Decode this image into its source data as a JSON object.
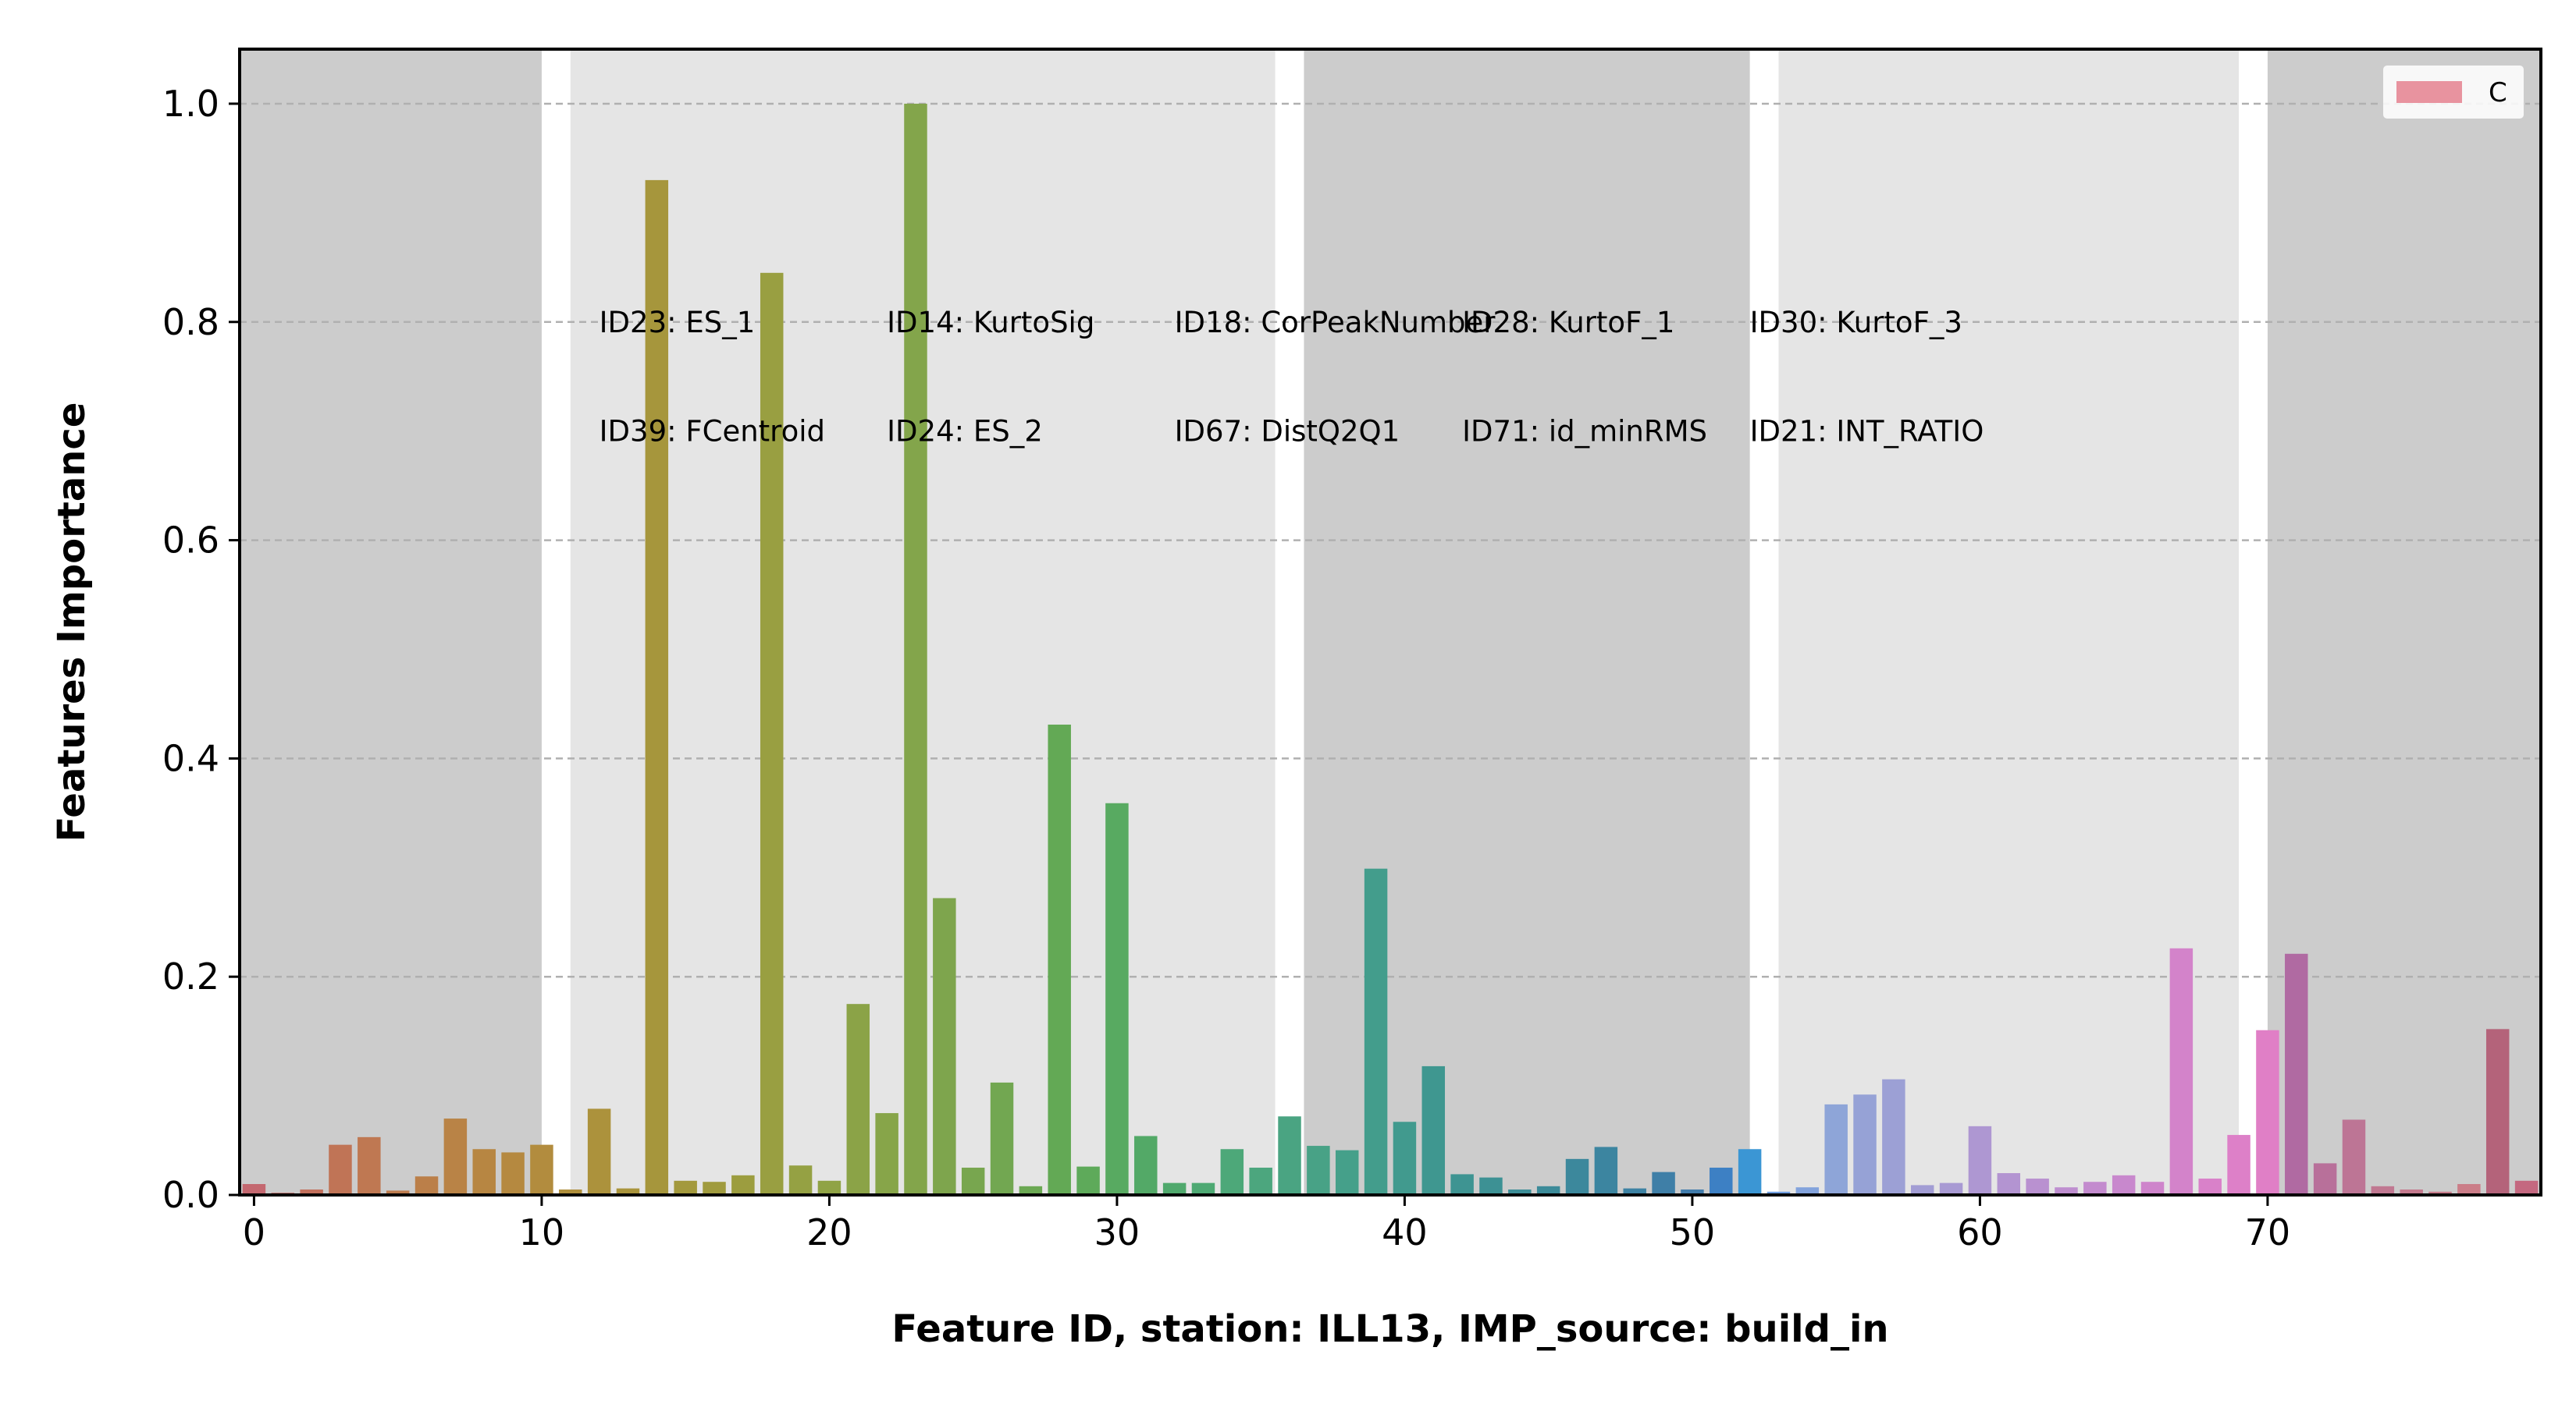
{
  "chart_data": {
    "type": "bar",
    "xlabel": "Feature ID, station: ILL13, IMP_source: build_in",
    "ylabel": "Features Importance",
    "xlim": [
      -0.5,
      79.5
    ],
    "ylim": [
      0,
      1.05
    ],
    "xticks": [
      0,
      10,
      20,
      30,
      40,
      50,
      60,
      70
    ],
    "yticks": [
      0.0,
      0.2,
      0.4,
      0.6,
      0.8,
      1.0
    ],
    "xtick_labels": [
      "0",
      "10",
      "20",
      "30",
      "40",
      "50",
      "60",
      "70"
    ],
    "ytick_labels": [
      "0.0",
      "0.2",
      "0.4",
      "0.6",
      "0.8",
      "1.0"
    ],
    "grid": "y-dashed",
    "legend": {
      "position": "top-right",
      "entries": [
        {
          "label": "C",
          "color": "#e8939f"
        }
      ]
    },
    "background_bands": [
      {
        "start": -0.5,
        "end": 10.0,
        "color": "#cccccc"
      },
      {
        "start": 11.0,
        "end": 35.5,
        "color": "#e5e5e5"
      },
      {
        "start": 36.5,
        "end": 52.0,
        "color": "#cccccc"
      },
      {
        "start": 53.0,
        "end": 69.0,
        "color": "#e5e5e5"
      },
      {
        "start": 70.0,
        "end": 79.5,
        "color": "#cccccc"
      }
    ],
    "annotations": [
      {
        "text": "ID23: ES_1",
        "x": 12,
        "y": 0.8
      },
      {
        "text": "ID14: KurtoSig",
        "x": 22,
        "y": 0.8
      },
      {
        "text": "ID18: CorPeakNumber",
        "x": 32,
        "y": 0.8
      },
      {
        "text": "ID28: KurtoF_1",
        "x": 42,
        "y": 0.8
      },
      {
        "text": "ID30: KurtoF_3",
        "x": 52,
        "y": 0.8
      },
      {
        "text": "ID39: FCentroid",
        "x": 12,
        "y": 0.7
      },
      {
        "text": "ID24: ES_2",
        "x": 22,
        "y": 0.7
      },
      {
        "text": "ID67: DistQ2Q1",
        "x": 32,
        "y": 0.7
      },
      {
        "text": "ID71: id_minRMS",
        "x": 42,
        "y": 0.7
      },
      {
        "text": "ID21: INT_RATIO",
        "x": 52,
        "y": 0.7
      }
    ],
    "categories": [
      0,
      1,
      2,
      3,
      4,
      5,
      6,
      7,
      8,
      9,
      10,
      11,
      12,
      13,
      14,
      15,
      16,
      17,
      18,
      19,
      20,
      21,
      22,
      23,
      24,
      25,
      26,
      27,
      28,
      29,
      30,
      31,
      32,
      33,
      34,
      35,
      36,
      37,
      38,
      39,
      40,
      41,
      42,
      43,
      44,
      45,
      46,
      47,
      48,
      49,
      50,
      51,
      52,
      53,
      54,
      55,
      56,
      57,
      58,
      59,
      60,
      61,
      62,
      63,
      64,
      65,
      66,
      67,
      68,
      69,
      70,
      71,
      72,
      73,
      74,
      75,
      76,
      77,
      78,
      79
    ],
    "values": [
      0.01,
      0.002,
      0.005,
      0.046,
      0.053,
      0.004,
      0.017,
      0.07,
      0.042,
      0.039,
      0.046,
      0.005,
      0.079,
      0.006,
      0.93,
      0.013,
      0.012,
      0.018,
      0.845,
      0.027,
      0.013,
      0.175,
      0.075,
      1.0,
      0.272,
      0.025,
      0.103,
      0.008,
      0.431,
      0.026,
      0.359,
      0.054,
      0.011,
      0.011,
      0.042,
      0.025,
      0.072,
      0.045,
      0.041,
      0.299,
      0.067,
      0.118,
      0.019,
      0.016,
      0.005,
      0.008,
      0.033,
      0.044,
      0.006,
      0.021,
      0.005,
      0.025,
      0.042,
      0.003,
      0.007,
      0.083,
      0.092,
      0.106,
      0.009,
      0.011,
      0.063,
      0.02,
      0.015,
      0.007,
      0.012,
      0.018,
      0.012,
      0.226,
      0.015,
      0.055,
      0.151,
      0.221,
      0.029,
      0.069,
      0.008,
      0.005,
      0.003,
      0.01,
      0.152,
      0.013
    ],
    "colors": [
      "#c46870",
      "#c26c66",
      "#c2705c",
      "#c07456",
      "#bf7852",
      "#bd7c4e",
      "#bb7f49",
      "#b98346",
      "#b78642",
      "#b58940",
      "#b28c3e",
      "#af8f3c",
      "#ac923c",
      "#a9943c",
      "#a6963c",
      "#a3993d",
      "#a09b3e",
      "#9c9d3f",
      "#999f41",
      "#95a143",
      "#90a345",
      "#8ba347",
      "#87a549",
      "#83a54b",
      "#7ea54d",
      "#78a64f",
      "#72a751",
      "#6ba853",
      "#63a955",
      "#5eaa5a",
      "#58aa61",
      "#53a967",
      "#50a96d",
      "#4ea973",
      "#4da879",
      "#4ca67e",
      "#4aa482",
      "#48a286",
      "#45a08a",
      "#439d8c",
      "#419a8e",
      "#3f9790",
      "#3e9492",
      "#3d9194",
      "#3d8e97",
      "#3c8b99",
      "#3c889c",
      "#3c85a0",
      "#3d82a3",
      "#3f7fa7",
      "#417cab",
      "#3d80c4",
      "#3b96d4",
      "#6f9ee0",
      "#83a3dc",
      "#8ea5d8",
      "#96a2d6",
      "#9ca0d5",
      "#a29dd4",
      "#a89ad3",
      "#ae97d2",
      "#b394d1",
      "#b991d0",
      "#be8ecf",
      "#c38bce",
      "#c888cd",
      "#ce84cb",
      "#d383ca",
      "#d981c9",
      "#dd80c8",
      "#e07fc6",
      "#b06aa2",
      "#b8709a",
      "#bd7595",
      "#c07891",
      "#c47a8e",
      "#c87c8b",
      "#cb7d88",
      "#b4637a",
      "#c46880"
    ]
  }
}
